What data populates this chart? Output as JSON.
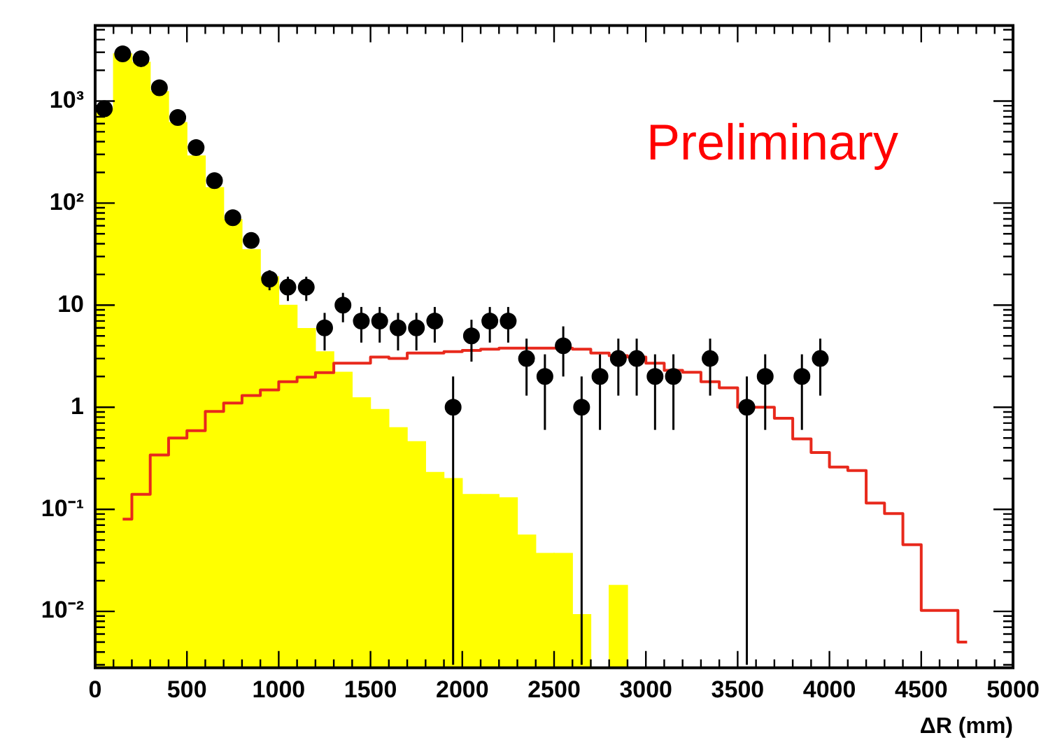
{
  "chart_data": {
    "type": "histogram",
    "xlabel": "ΔR (mm)",
    "annotations": [
      "Preliminary"
    ],
    "bins": [
      0,
      100,
      200,
      300,
      400,
      500,
      600,
      700,
      800,
      900,
      1000,
      1100,
      1200,
      1300,
      1400,
      1500,
      1600,
      1700,
      1800,
      1900,
      2000,
      2100,
      2200,
      2300,
      2400,
      2500,
      2600,
      2700,
      2800,
      2900,
      3000,
      3100,
      3200,
      3300,
      3400,
      3500,
      3600,
      3700,
      3800,
      3900,
      4000,
      4100,
      4200,
      4300,
      4400,
      4500,
      4600,
      4700,
      4800,
      4900,
      5000
    ],
    "series": [
      {
        "color": "#ffff00",
        "values": [
          840,
          2900,
          2400,
          1240,
          615,
          290,
          142,
          69,
          35,
          19,
          10,
          5.9,
          3.5,
          2.2,
          1.24,
          0.95,
          0.63,
          0.46,
          0.23,
          0.2,
          0.14,
          0.14,
          0.13,
          0.056,
          0.037,
          0.037,
          0.0093,
          null,
          0.018,
          null,
          null,
          null,
          null,
          null,
          null,
          null,
          null,
          null,
          null,
          null,
          null,
          null,
          null,
          null,
          null,
          null,
          null,
          null,
          null,
          null
        ]
      },
      {
        "type": "step",
        "color": "#e8291c",
        "marker": "none",
        "x": [
          150,
          250,
          350,
          450,
          550,
          650,
          750,
          850,
          950,
          1050,
          1150,
          1250,
          1350,
          1450,
          1550,
          1650,
          1750,
          1850,
          1950,
          2050,
          2150,
          2250,
          2350,
          2450,
          2550,
          2650,
          2750,
          2850,
          2950,
          3050,
          3150,
          3250,
          3350,
          3450,
          3550,
          3650,
          3750,
          3850,
          3950,
          4050,
          4150,
          4250,
          4350,
          4450,
          4550,
          4650,
          4750
        ],
        "values": [
          0.08,
          0.14,
          0.34,
          0.5,
          0.59,
          0.91,
          1.1,
          1.3,
          1.48,
          1.78,
          1.97,
          2.18,
          2.7,
          2.7,
          3.1,
          3.0,
          3.4,
          3.4,
          3.5,
          3.6,
          3.7,
          3.8,
          3.8,
          3.8,
          3.8,
          3.7,
          3.4,
          3.2,
          3.1,
          2.7,
          2.3,
          2.2,
          1.78,
          1.55,
          1.0,
          1.0,
          0.78,
          0.49,
          0.36,
          0.26,
          0.24,
          0.115,
          0.091,
          0.045,
          0.0102,
          0.0102,
          0.005
        ]
      },
      {
        "type": "scatter",
        "color": "#000000",
        "x": [
          50,
          150,
          250,
          350,
          450,
          550,
          650,
          750,
          850,
          950,
          1050,
          1150,
          1250,
          1350,
          1450,
          1550,
          1650,
          1750,
          1850,
          1950,
          2050,
          2150,
          2250,
          2350,
          2450,
          2550,
          2650,
          2750,
          2850,
          2950,
          3050,
          3150,
          3350,
          3550,
          3650,
          3850,
          3950
        ],
        "values": [
          840,
          2900,
          2600,
          1350,
          690,
          350,
          166,
          72,
          43,
          18,
          15,
          15,
          6,
          10,
          7,
          7,
          6,
          6,
          7,
          1,
          5,
          7,
          7,
          3,
          2,
          4,
          1,
          2,
          3,
          3,
          2,
          2,
          3,
          1,
          2,
          2,
          3
        ],
        "errors": [
          null,
          null,
          null,
          null,
          null,
          null,
          null,
          null,
          null,
          [
            14,
            22
          ],
          [
            11,
            19
          ],
          [
            11,
            19
          ],
          [
            3.6,
            8.4
          ],
          [
            6.8,
            13.2
          ],
          [
            4.3,
            9.6
          ],
          [
            4.3,
            9.6
          ],
          [
            3.6,
            8.4
          ],
          [
            3.6,
            8.4
          ],
          [
            4.3,
            9.6
          ],
          [
            0.003,
            2.0
          ],
          [
            2.8,
            7.2
          ],
          [
            4.3,
            9.6
          ],
          [
            4.3,
            9.6
          ],
          [
            1.3,
            4.7
          ],
          [
            0.6,
            3.3
          ],
          [
            2.0,
            6.2
          ],
          [
            0.003,
            2.0
          ],
          [
            0.6,
            3.3
          ],
          [
            1.3,
            4.7
          ],
          [
            1.3,
            4.7
          ],
          [
            0.6,
            3.3
          ],
          [
            0.6,
            3.3
          ],
          [
            1.3,
            4.7
          ],
          [
            0.003,
            2.0
          ],
          [
            0.6,
            3.3
          ],
          [
            0.6,
            3.3
          ],
          [
            1.3,
            4.7
          ]
        ]
      }
    ],
    "xlim": [
      0,
      5000
    ],
    "xticks": [
      0,
      500,
      1000,
      1500,
      2000,
      2500,
      3000,
      3500,
      4000,
      4500,
      5000
    ],
    "ylim": [
      0.0028,
      5500
    ],
    "log": true,
    "yticks": [
      {
        "value": 0.01,
        "label": "10⁻²"
      },
      {
        "value": 0.1,
        "label": "10⁻¹"
      },
      1,
      10,
      {
        "value": 100,
        "label": "10²"
      },
      {
        "value": 1000,
        "label": "10³"
      }
    ],
    "grid": false,
    "legend": false,
    "marker": "circle"
  }
}
